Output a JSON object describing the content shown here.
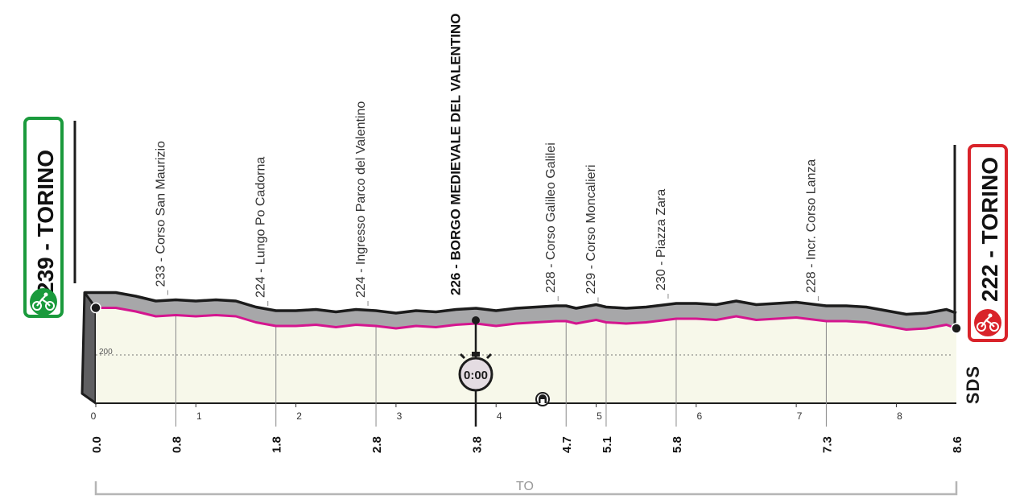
{
  "start": {
    "altitude": "239",
    "name": "TORINO",
    "color": "#1a9a3c",
    "icon": "cyclist-icon"
  },
  "finish": {
    "altitude": "222",
    "name": "TORINO",
    "color": "#d9232a",
    "icon": "cyclist-icon"
  },
  "waypoints": [
    {
      "label": "233 - Corso San Maurizio",
      "km": 0.8,
      "bold": false
    },
    {
      "label": "224 - Lungo Po Cadorna",
      "km": 1.8,
      "bold": false
    },
    {
      "label": "224 - Ingresso Parco del Valentino",
      "km": 2.8,
      "bold": false
    },
    {
      "label": "226 - BORGO MEDIEVALE DEL VALENTINO",
      "km": 3.8,
      "bold": true
    },
    {
      "label": "228 - Corso Galileo Galilei",
      "km": 4.7,
      "bold": false
    },
    {
      "label": "229 - Corso Moncalieri",
      "km": 5.1,
      "bold": false
    },
    {
      "label": "230 - Piazza Zara",
      "km": 5.8,
      "bold": false
    },
    {
      "label": "228 - Incr. Corso Lanza",
      "km": 7.3,
      "bold": false
    }
  ],
  "km_marks": [
    "0.0",
    "0.8",
    "1.8",
    "2.8",
    "3.8",
    "4.7",
    "5.1",
    "5.8",
    "7.3",
    "8.6"
  ],
  "km_ticks": [
    "0",
    "1",
    "2",
    "3",
    "4",
    "5",
    "6",
    "7",
    "8"
  ],
  "altitude_grid": "200",
  "intermediate_time": {
    "label": "0:00",
    "km": 3.8,
    "icon": "stopwatch-icon"
  },
  "tunnel": {
    "icon": "tunnel-icon",
    "km": 4.5
  },
  "logo": "SDS",
  "province": "TO",
  "chart_data": {
    "type": "area",
    "xlabel": "",
    "ylabel": "",
    "x": [
      0,
      0.2,
      0.4,
      0.6,
      0.8,
      1.0,
      1.2,
      1.4,
      1.6,
      1.8,
      2.0,
      2.2,
      2.4,
      2.6,
      2.8,
      3.0,
      3.2,
      3.4,
      3.6,
      3.8,
      4.0,
      4.2,
      4.4,
      4.6,
      4.7,
      4.8,
      5.0,
      5.1,
      5.3,
      5.5,
      5.8,
      6.0,
      6.2,
      6.4,
      6.6,
      6.8,
      7.0,
      7.3,
      7.5,
      7.7,
      7.9,
      8.1,
      8.3,
      8.5,
      8.6
    ],
    "altitude": [
      239,
      239,
      236,
      232,
      233,
      232,
      233,
      232,
      227,
      224,
      224,
      225,
      223,
      225,
      224,
      222,
      224,
      223,
      225,
      226,
      224,
      226,
      227,
      228,
      228,
      226,
      229,
      227,
      226,
      227,
      230,
      230,
      229,
      232,
      229,
      230,
      231,
      228,
      228,
      227,
      224,
      221,
      222,
      225,
      222
    ],
    "ylim": [
      160,
      250
    ],
    "xlim": [
      0,
      8.6
    ]
  }
}
